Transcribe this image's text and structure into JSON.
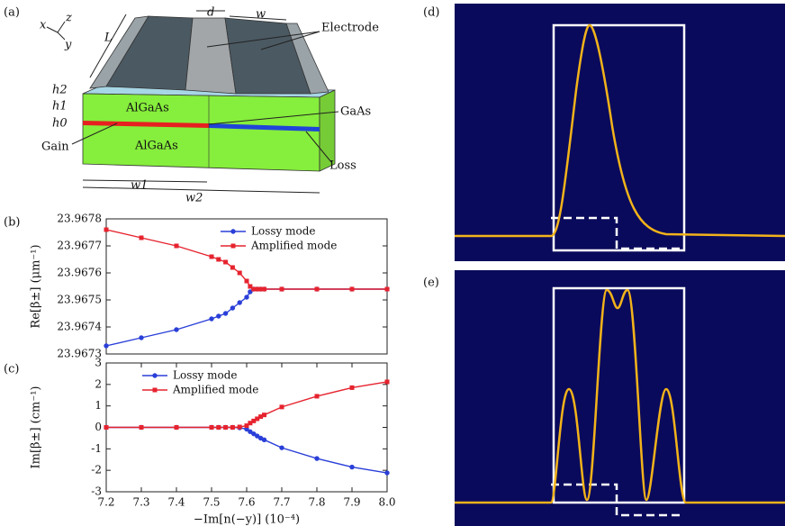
{
  "diagram": {
    "label": "(a)",
    "axis_x": "x",
    "axis_z": "z",
    "axis_y": "y",
    "length": "L",
    "gap": "d",
    "width": "w",
    "electrode": "Electrode",
    "h2": "h2",
    "h1": "h1",
    "h0": "h0",
    "upper_cladding": "AlGaAs",
    "lower_cladding": "AlGaAs",
    "core": "GaAs",
    "gain": "Gain",
    "loss": "Loss",
    "w1": "w1",
    "w2": "w2"
  },
  "chart_data": [
    {
      "type": "line",
      "label": "(b)",
      "ylabel": "Re[β±] (μm⁻¹)",
      "x": [
        7.2,
        7.3,
        7.4,
        7.5,
        7.52,
        7.54,
        7.56,
        7.58,
        7.6,
        7.61,
        7.62,
        7.63,
        7.64,
        7.65,
        7.7,
        7.8,
        7.9,
        8.0
      ],
      "series": [
        {
          "name": "Lossy mode",
          "color": "#2a3fd8",
          "marker": "circle",
          "values": [
            23.96733,
            23.96736,
            23.96739,
            23.96743,
            23.96744,
            23.96745,
            23.96747,
            23.96749,
            23.96751,
            23.96753,
            23.96754,
            23.96754,
            23.96754,
            23.96754,
            23.96754,
            23.96754,
            23.96754,
            23.96754
          ]
        },
        {
          "name": "Amplified mode",
          "color": "#e6232e",
          "marker": "square",
          "values": [
            23.96776,
            23.96773,
            23.9677,
            23.96766,
            23.96765,
            23.96764,
            23.96762,
            23.9676,
            23.96757,
            23.96755,
            23.96754,
            23.96754,
            23.96754,
            23.96754,
            23.96754,
            23.96754,
            23.96754,
            23.96754
          ]
        }
      ],
      "xlim": [
        7.2,
        8.0
      ],
      "ylim": [
        23.9673,
        23.9678
      ],
      "yticks": [
        23.9673,
        23.9674,
        23.9675,
        23.9676,
        23.9677,
        23.9678
      ],
      "legend": "upper right"
    },
    {
      "type": "line",
      "label": "(c)",
      "ylabel": "Im[β±] (cm⁻¹)",
      "xlabel": "−Im[n(−y)] (10⁻⁴)",
      "x": [
        7.2,
        7.3,
        7.4,
        7.5,
        7.52,
        7.54,
        7.56,
        7.58,
        7.6,
        7.61,
        7.62,
        7.63,
        7.64,
        7.65,
        7.7,
        7.8,
        7.9,
        8.0
      ],
      "series": [
        {
          "name": "Lossy mode",
          "color": "#2a3fd8",
          "marker": "circle",
          "values": [
            0,
            0,
            0,
            0,
            0,
            0,
            0,
            -0.02,
            -0.08,
            -0.2,
            -0.3,
            -0.4,
            -0.5,
            -0.58,
            -0.95,
            -1.45,
            -1.85,
            -2.12
          ]
        },
        {
          "name": "Amplified mode",
          "color": "#e6232e",
          "marker": "square",
          "values": [
            0,
            0,
            0,
            0,
            0,
            0,
            0,
            0.02,
            0.08,
            0.2,
            0.3,
            0.4,
            0.5,
            0.58,
            0.95,
            1.45,
            1.85,
            2.12
          ]
        }
      ],
      "xlim": [
        7.2,
        8.0
      ],
      "xticks": [
        7.2,
        7.3,
        7.4,
        7.5,
        7.6,
        7.7,
        7.8,
        7.9,
        {
          "value": 8,
          "label": "8.0"
        }
      ],
      "ylim": [
        -3,
        3
      ],
      "yticks": [
        -3,
        -2,
        -1,
        0,
        1,
        2,
        3
      ],
      "legend": "upper left"
    }
  ],
  "mode_profiles": [
    {
      "label": "(d)"
    },
    {
      "label": "(e)"
    }
  ]
}
